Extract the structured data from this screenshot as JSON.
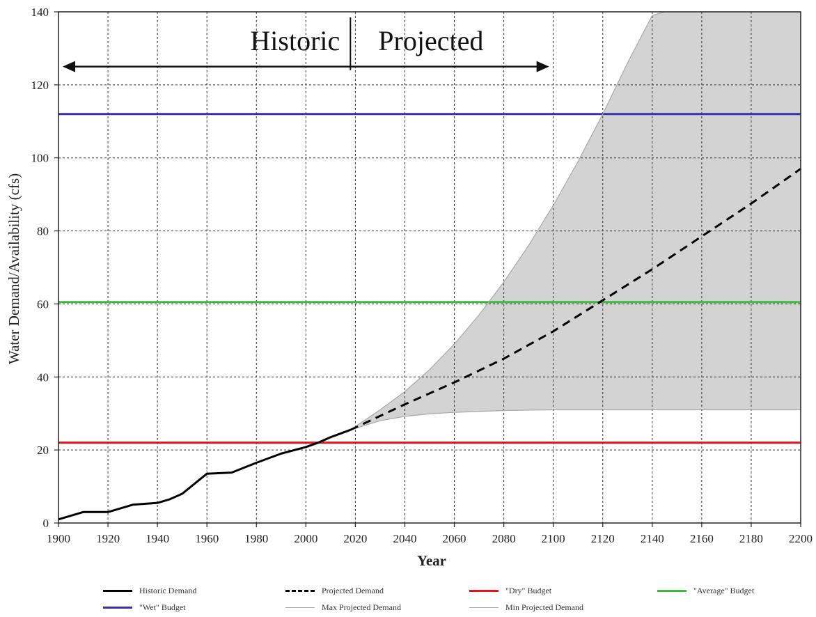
{
  "chart_data": {
    "type": "line",
    "title": "",
    "xlabel": "Year",
    "ylabel": "Water Demand/Availability  (cfs)",
    "xlim": [
      1900,
      2200
    ],
    "ylim": [
      0,
      140
    ],
    "x_ticks": [
      "1900",
      "1920",
      "1940",
      "1960",
      "1980",
      "2000",
      "2020",
      "2040",
      "2060",
      "2080",
      "2100",
      "2120",
      "2140",
      "2160",
      "2180",
      "2200"
    ],
    "y_ticks": [
      "0",
      "20",
      "40",
      "60",
      "80",
      "100",
      "120",
      "140"
    ],
    "grid": true,
    "legend_position": "bottom",
    "annotations": {
      "historic_label": "Historic",
      "projected_label": "Projected",
      "divider_year": 2018,
      "arrow_from_year": 1900,
      "arrow_to_year": 2100,
      "arrow_y": 125
    },
    "series": [
      {
        "name": "Historic Demand",
        "style": "solid",
        "color": "#000000",
        "x": [
          1900,
          1905,
          1910,
          1920,
          1930,
          1940,
          1945,
          1950,
          1960,
          1970,
          1980,
          1990,
          2000,
          2005,
          2010,
          2018
        ],
        "y": [
          1,
          2,
          3,
          3,
          5,
          5.5,
          6.5,
          8,
          13.5,
          13.8,
          16.5,
          19,
          20.8,
          22,
          23.5,
          25.5
        ]
      },
      {
        "name": "Projected Demand",
        "style": "dashed",
        "color": "#000000",
        "x": [
          2018,
          2040,
          2060,
          2080,
          2100,
          2120,
          2140,
          2160,
          2180,
          2200
        ],
        "y": [
          25.5,
          32.5,
          38.5,
          45,
          52.5,
          61,
          69.5,
          78.5,
          87.5,
          97
        ]
      },
      {
        "name": "\"Dry\" Budget",
        "style": "solid",
        "color": "#e0141c",
        "x": [
          1900,
          2200
        ],
        "y": [
          22,
          22
        ]
      },
      {
        "name": "\"Average\" Budget",
        "style": "solid",
        "color": "#3dbb3a",
        "x": [
          1900,
          2200
        ],
        "y": [
          60.5,
          60.5
        ]
      },
      {
        "name": "\"Wet\" Budget",
        "style": "solid",
        "color": "#3a2fa6",
        "x": [
          1900,
          2200
        ],
        "y": [
          112,
          112
        ]
      },
      {
        "name": "Max Projected Demand",
        "style": "thin",
        "color": "#a8a8a8",
        "x": [
          2018,
          2030,
          2040,
          2050,
          2060,
          2070,
          2080,
          2090,
          2100,
          2110,
          2120,
          2130,
          2140,
          2145
        ],
        "y": [
          25.5,
          31,
          36,
          42,
          49,
          57,
          66,
          76,
          87,
          99,
          112,
          126,
          139,
          140
        ]
      },
      {
        "name": "Min Projected Demand",
        "style": "thin",
        "color": "#a8a8a8",
        "x": [
          2018,
          2030,
          2040,
          2050,
          2060,
          2080,
          2100,
          2200
        ],
        "y": [
          25.5,
          28,
          29.2,
          29.9,
          30.3,
          30.8,
          31,
          31
        ]
      }
    ],
    "shaded_band": {
      "between": [
        "Max Projected Demand",
        "Min Projected Demand"
      ],
      "color": "#d3d3d3"
    }
  },
  "legend": {
    "items": [
      {
        "label": "Historic Demand",
        "style": "solid",
        "color": "#000000"
      },
      {
        "label": "Projected Demand",
        "style": "dashed",
        "color": "#000000"
      },
      {
        "label": "\"Dry\" Budget",
        "style": "solid",
        "color": "#e0141c"
      },
      {
        "label": "\"Average\" Budget",
        "style": "solid",
        "color": "#3dbb3a"
      },
      {
        "label": "\"Wet\" Budget",
        "style": "solid",
        "color": "#3a2fa6"
      },
      {
        "label": "Max Projected Demand",
        "style": "thin",
        "color": "#a8a8a8"
      },
      {
        "label": "Min Projected Demand",
        "style": "thin",
        "color": "#a8a8a8"
      }
    ]
  }
}
